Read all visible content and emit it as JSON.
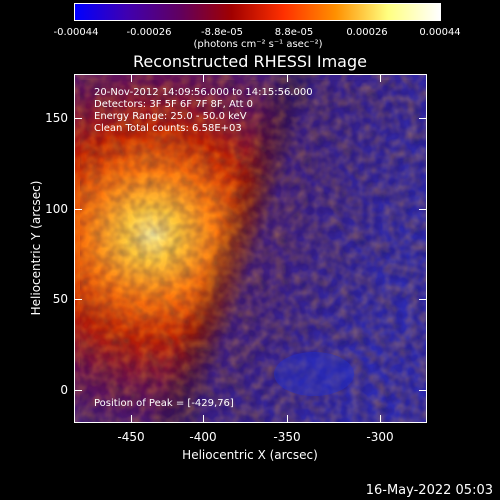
{
  "colorbar": {
    "ticks": [
      "-0.00044",
      "-0.00026",
      "-8.8e-05",
      "8.8e-05",
      "0.00026",
      "0.00044"
    ],
    "unit_label": "(photons cm⁻² s⁻¹ asec⁻²)",
    "gradient_colors": [
      "#0000ff",
      "#4000b0",
      "#600060",
      "#a00000",
      "#ff3000",
      "#ff9000",
      "#ffff80",
      "#ffffff"
    ]
  },
  "plot": {
    "title": "Reconstructed RHESSI Image",
    "xlabel": "Heliocentric X (arcsec)",
    "ylabel": "Heliocentric Y (arcsec)",
    "xticks": [
      "-450",
      "-400",
      "-350",
      "-300"
    ],
    "yticks": [
      "150",
      "100",
      "50",
      "0"
    ],
    "annotations": {
      "time_range": "20-Nov-2012 14:09:56.000 to 14:15:56.000",
      "detectors": "Detectors: 3F 5F 6F 7F 8F, Att 0",
      "energy_range": "Energy Range: 25.0 - 50.0 keV",
      "method": "Clean    Total counts: 6.58E+03",
      "peak": "Position of Peak = [-429,76]"
    }
  },
  "footer": {
    "timestamp": "16-May-2022 05:03"
  }
}
